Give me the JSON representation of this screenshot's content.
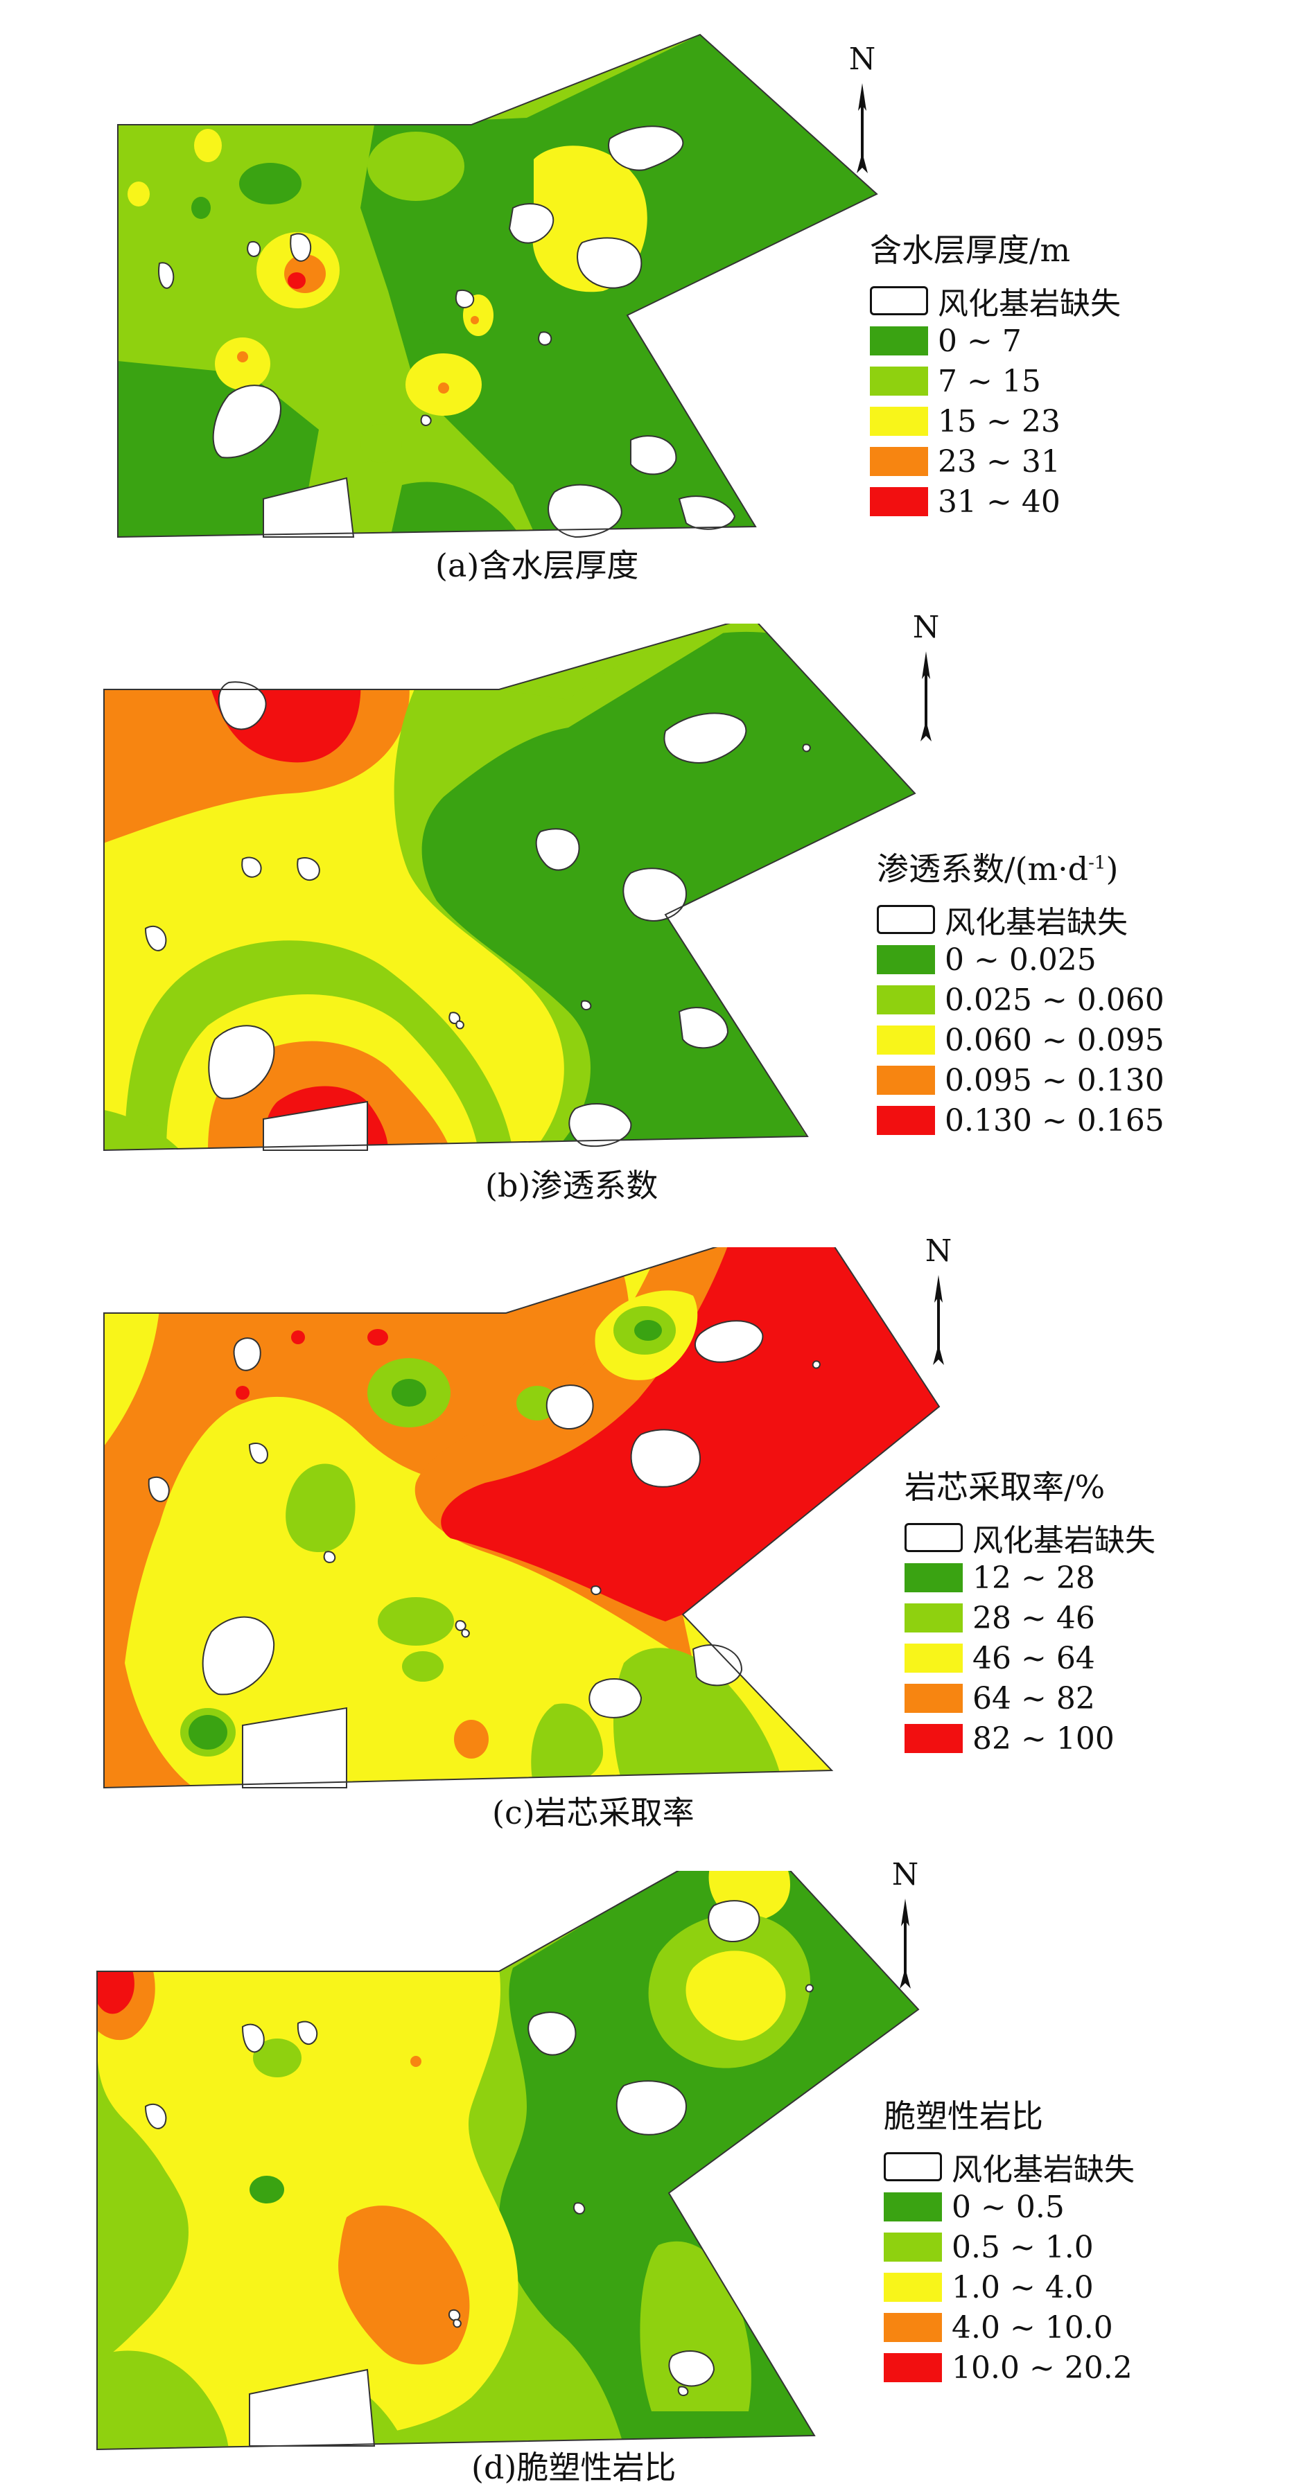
{
  "colors": {
    "dark_green": "#3aa312",
    "light_green": "#8fd10f",
    "yellow": "#f8f51a",
    "orange": "#f78511",
    "red": "#f20f10",
    "gap": "#ffffff",
    "outline": "#333333"
  },
  "north_arrow": {
    "letter": "N",
    "icon": "north-arrow-icon"
  },
  "panels": [
    {
      "caption": "(a)含水层厚度",
      "legend": {
        "title": "含水层厚度/m",
        "missing_label": "风化基岩缺失",
        "classes": [
          "0 ~ 7",
          "7 ~ 15",
          "15 ~ 23",
          "23 ~ 31",
          "31 ~ 40"
        ]
      }
    },
    {
      "caption": "(b)渗透系数",
      "legend": {
        "title": "渗透系数/(m·d",
        "title_sup": "-1",
        "title_end": ")",
        "missing_label": "风化基岩缺失",
        "classes": [
          "0 ~ 0.025",
          "0.025 ~ 0.060",
          "0.060 ~ 0.095",
          "0.095 ~ 0.130",
          "0.130 ~ 0.165"
        ]
      }
    },
    {
      "caption": "(c)岩芯采取率",
      "legend": {
        "title": "岩芯采取率/%",
        "missing_label": "风化基岩缺失",
        "classes": [
          "12 ~ 28",
          "28 ~ 46",
          "46 ~ 64",
          "64 ~ 82",
          "82 ~ 100"
        ]
      }
    },
    {
      "caption": "(d)脆塑性岩比",
      "legend": {
        "title": "脆塑性岩比",
        "missing_label": "风化基岩缺失",
        "classes": [
          "0 ~ 0.5",
          "0.5 ~ 1.0",
          "1.0 ~ 4.0",
          "4.0 ~ 10.0",
          "10.0 ~ 20.2"
        ]
      }
    }
  ]
}
